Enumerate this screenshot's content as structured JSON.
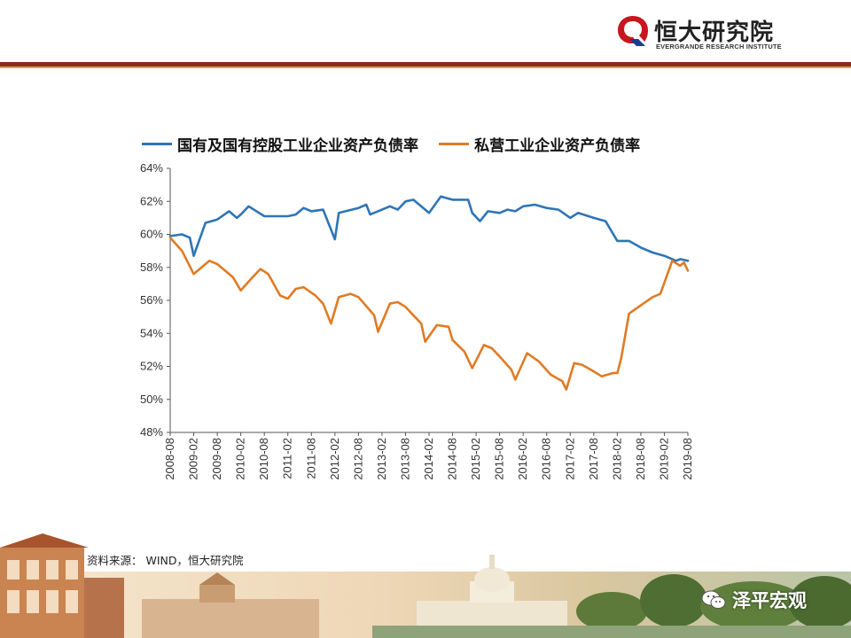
{
  "header": {
    "logo_cn": "恒大研究院",
    "logo_en": "EVERGRANDE RESEARCH INSTITUTE",
    "colors": {
      "rule": "#8b2e1c",
      "rule_accent": "#c9a36a",
      "logo_red": "#c8161d"
    }
  },
  "source": "资料来源：  WIND，恒大研究院",
  "watermark": {
    "text": "泽平宏观",
    "icon": "wechat-icon"
  },
  "chart_data": {
    "type": "line",
    "title": "",
    "xlabel": "",
    "ylabel": "",
    "ylim": [
      48,
      64
    ],
    "yticks": [
      48,
      50,
      52,
      54,
      56,
      58,
      60,
      62,
      64
    ],
    "ytick_labels": [
      "48%",
      "50%",
      "52%",
      "54%",
      "56%",
      "58%",
      "60%",
      "62%",
      "64%"
    ],
    "xticks": [
      "2008-08",
      "2009-02",
      "2009-08",
      "2010-02",
      "2010-08",
      "2011-02",
      "2011-08",
      "2012-02",
      "2012-08",
      "2013-02",
      "2013-08",
      "2014-02",
      "2014-08",
      "2015-02",
      "2015-08",
      "2016-02",
      "2016-08",
      "2017-02",
      "2017-08",
      "2018-02",
      "2018-08",
      "2019-02",
      "2019-08"
    ],
    "x_range": [
      "2008-08",
      "2019-08"
    ],
    "grid": false,
    "legend_position": "top",
    "series": [
      {
        "name": "国有及国有控股工业企业资产负债率",
        "color": "#2e75b6",
        "points": [
          [
            "2008-08",
            59.9
          ],
          [
            "2008-11",
            60.0
          ],
          [
            "2009-01",
            59.8
          ],
          [
            "2009-02",
            58.7
          ],
          [
            "2009-05",
            60.7
          ],
          [
            "2009-08",
            60.9
          ],
          [
            "2009-11",
            61.4
          ],
          [
            "2010-01",
            61.0
          ],
          [
            "2010-02",
            61.2
          ],
          [
            "2010-04",
            61.7
          ],
          [
            "2010-08",
            61.1
          ],
          [
            "2011-02",
            61.1
          ],
          [
            "2011-04",
            61.2
          ],
          [
            "2011-06",
            61.6
          ],
          [
            "2011-08",
            61.4
          ],
          [
            "2011-11",
            61.5
          ],
          [
            "2012-02",
            59.7
          ],
          [
            "2012-03",
            61.3
          ],
          [
            "2012-08",
            61.6
          ],
          [
            "2012-10",
            61.8
          ],
          [
            "2012-11",
            61.2
          ],
          [
            "2013-02",
            61.5
          ],
          [
            "2013-04",
            61.7
          ],
          [
            "2013-06",
            61.5
          ],
          [
            "2013-08",
            62.0
          ],
          [
            "2013-10",
            62.1
          ],
          [
            "2014-02",
            61.3
          ],
          [
            "2014-05",
            62.3
          ],
          [
            "2014-08",
            62.1
          ],
          [
            "2014-12",
            62.1
          ],
          [
            "2015-01",
            61.3
          ],
          [
            "2015-03",
            60.8
          ],
          [
            "2015-05",
            61.4
          ],
          [
            "2015-08",
            61.3
          ],
          [
            "2015-10",
            61.5
          ],
          [
            "2015-12",
            61.4
          ],
          [
            "2016-02",
            61.7
          ],
          [
            "2016-05",
            61.8
          ],
          [
            "2016-08",
            61.6
          ],
          [
            "2016-11",
            61.5
          ],
          [
            "2017-02",
            61.0
          ],
          [
            "2017-04",
            61.3
          ],
          [
            "2017-08",
            61.0
          ],
          [
            "2017-11",
            60.8
          ],
          [
            "2018-02",
            59.6
          ],
          [
            "2018-05",
            59.6
          ],
          [
            "2018-08",
            59.2
          ],
          [
            "2018-11",
            58.9
          ],
          [
            "2019-02",
            58.7
          ],
          [
            "2019-05",
            58.4
          ],
          [
            "2019-06",
            58.5
          ],
          [
            "2019-08",
            58.4
          ]
        ]
      },
      {
        "name": "私营工业企业资产负债率",
        "color": "#e07b24",
        "points": [
          [
            "2008-08",
            59.8
          ],
          [
            "2008-11",
            59.0
          ],
          [
            "2009-02",
            57.6
          ],
          [
            "2009-06",
            58.4
          ],
          [
            "2009-08",
            58.2
          ],
          [
            "2009-12",
            57.4
          ],
          [
            "2010-02",
            56.6
          ],
          [
            "2010-05",
            57.4
          ],
          [
            "2010-07",
            57.9
          ],
          [
            "2010-09",
            57.6
          ],
          [
            "2010-12",
            56.3
          ],
          [
            "2011-02",
            56.1
          ],
          [
            "2011-04",
            56.7
          ],
          [
            "2011-06",
            56.8
          ],
          [
            "2011-09",
            56.3
          ],
          [
            "2011-11",
            55.8
          ],
          [
            "2012-01",
            54.6
          ],
          [
            "2012-03",
            56.2
          ],
          [
            "2012-06",
            56.4
          ],
          [
            "2012-08",
            56.2
          ],
          [
            "2012-12",
            55.1
          ],
          [
            "2013-01",
            54.1
          ],
          [
            "2013-04",
            55.8
          ],
          [
            "2013-06",
            55.9
          ],
          [
            "2013-08",
            55.6
          ],
          [
            "2013-10",
            55.1
          ],
          [
            "2013-12",
            54.6
          ],
          [
            "2014-01",
            53.5
          ],
          [
            "2014-04",
            54.5
          ],
          [
            "2014-07",
            54.4
          ],
          [
            "2014-08",
            53.6
          ],
          [
            "2014-11",
            52.9
          ],
          [
            "2015-01",
            51.9
          ],
          [
            "2015-04",
            53.3
          ],
          [
            "2015-06",
            53.1
          ],
          [
            "2015-08",
            52.6
          ],
          [
            "2015-11",
            51.8
          ],
          [
            "2015-12",
            51.2
          ],
          [
            "2016-03",
            52.8
          ],
          [
            "2016-06",
            52.3
          ],
          [
            "2016-09",
            51.5
          ],
          [
            "2016-12",
            51.1
          ],
          [
            "2017-01",
            50.6
          ],
          [
            "2017-03",
            52.2
          ],
          [
            "2017-05",
            52.1
          ],
          [
            "2017-08",
            51.7
          ],
          [
            "2017-10",
            51.4
          ],
          [
            "2018-01",
            51.6
          ],
          [
            "2018-02",
            51.6
          ],
          [
            "2018-03",
            52.5
          ],
          [
            "2018-05",
            55.2
          ],
          [
            "2018-08",
            55.7
          ],
          [
            "2018-11",
            56.2
          ],
          [
            "2019-01",
            56.4
          ],
          [
            "2019-04",
            58.4
          ],
          [
            "2019-06",
            58.1
          ],
          [
            "2019-07",
            58.3
          ],
          [
            "2019-08",
            57.8
          ]
        ]
      }
    ]
  }
}
